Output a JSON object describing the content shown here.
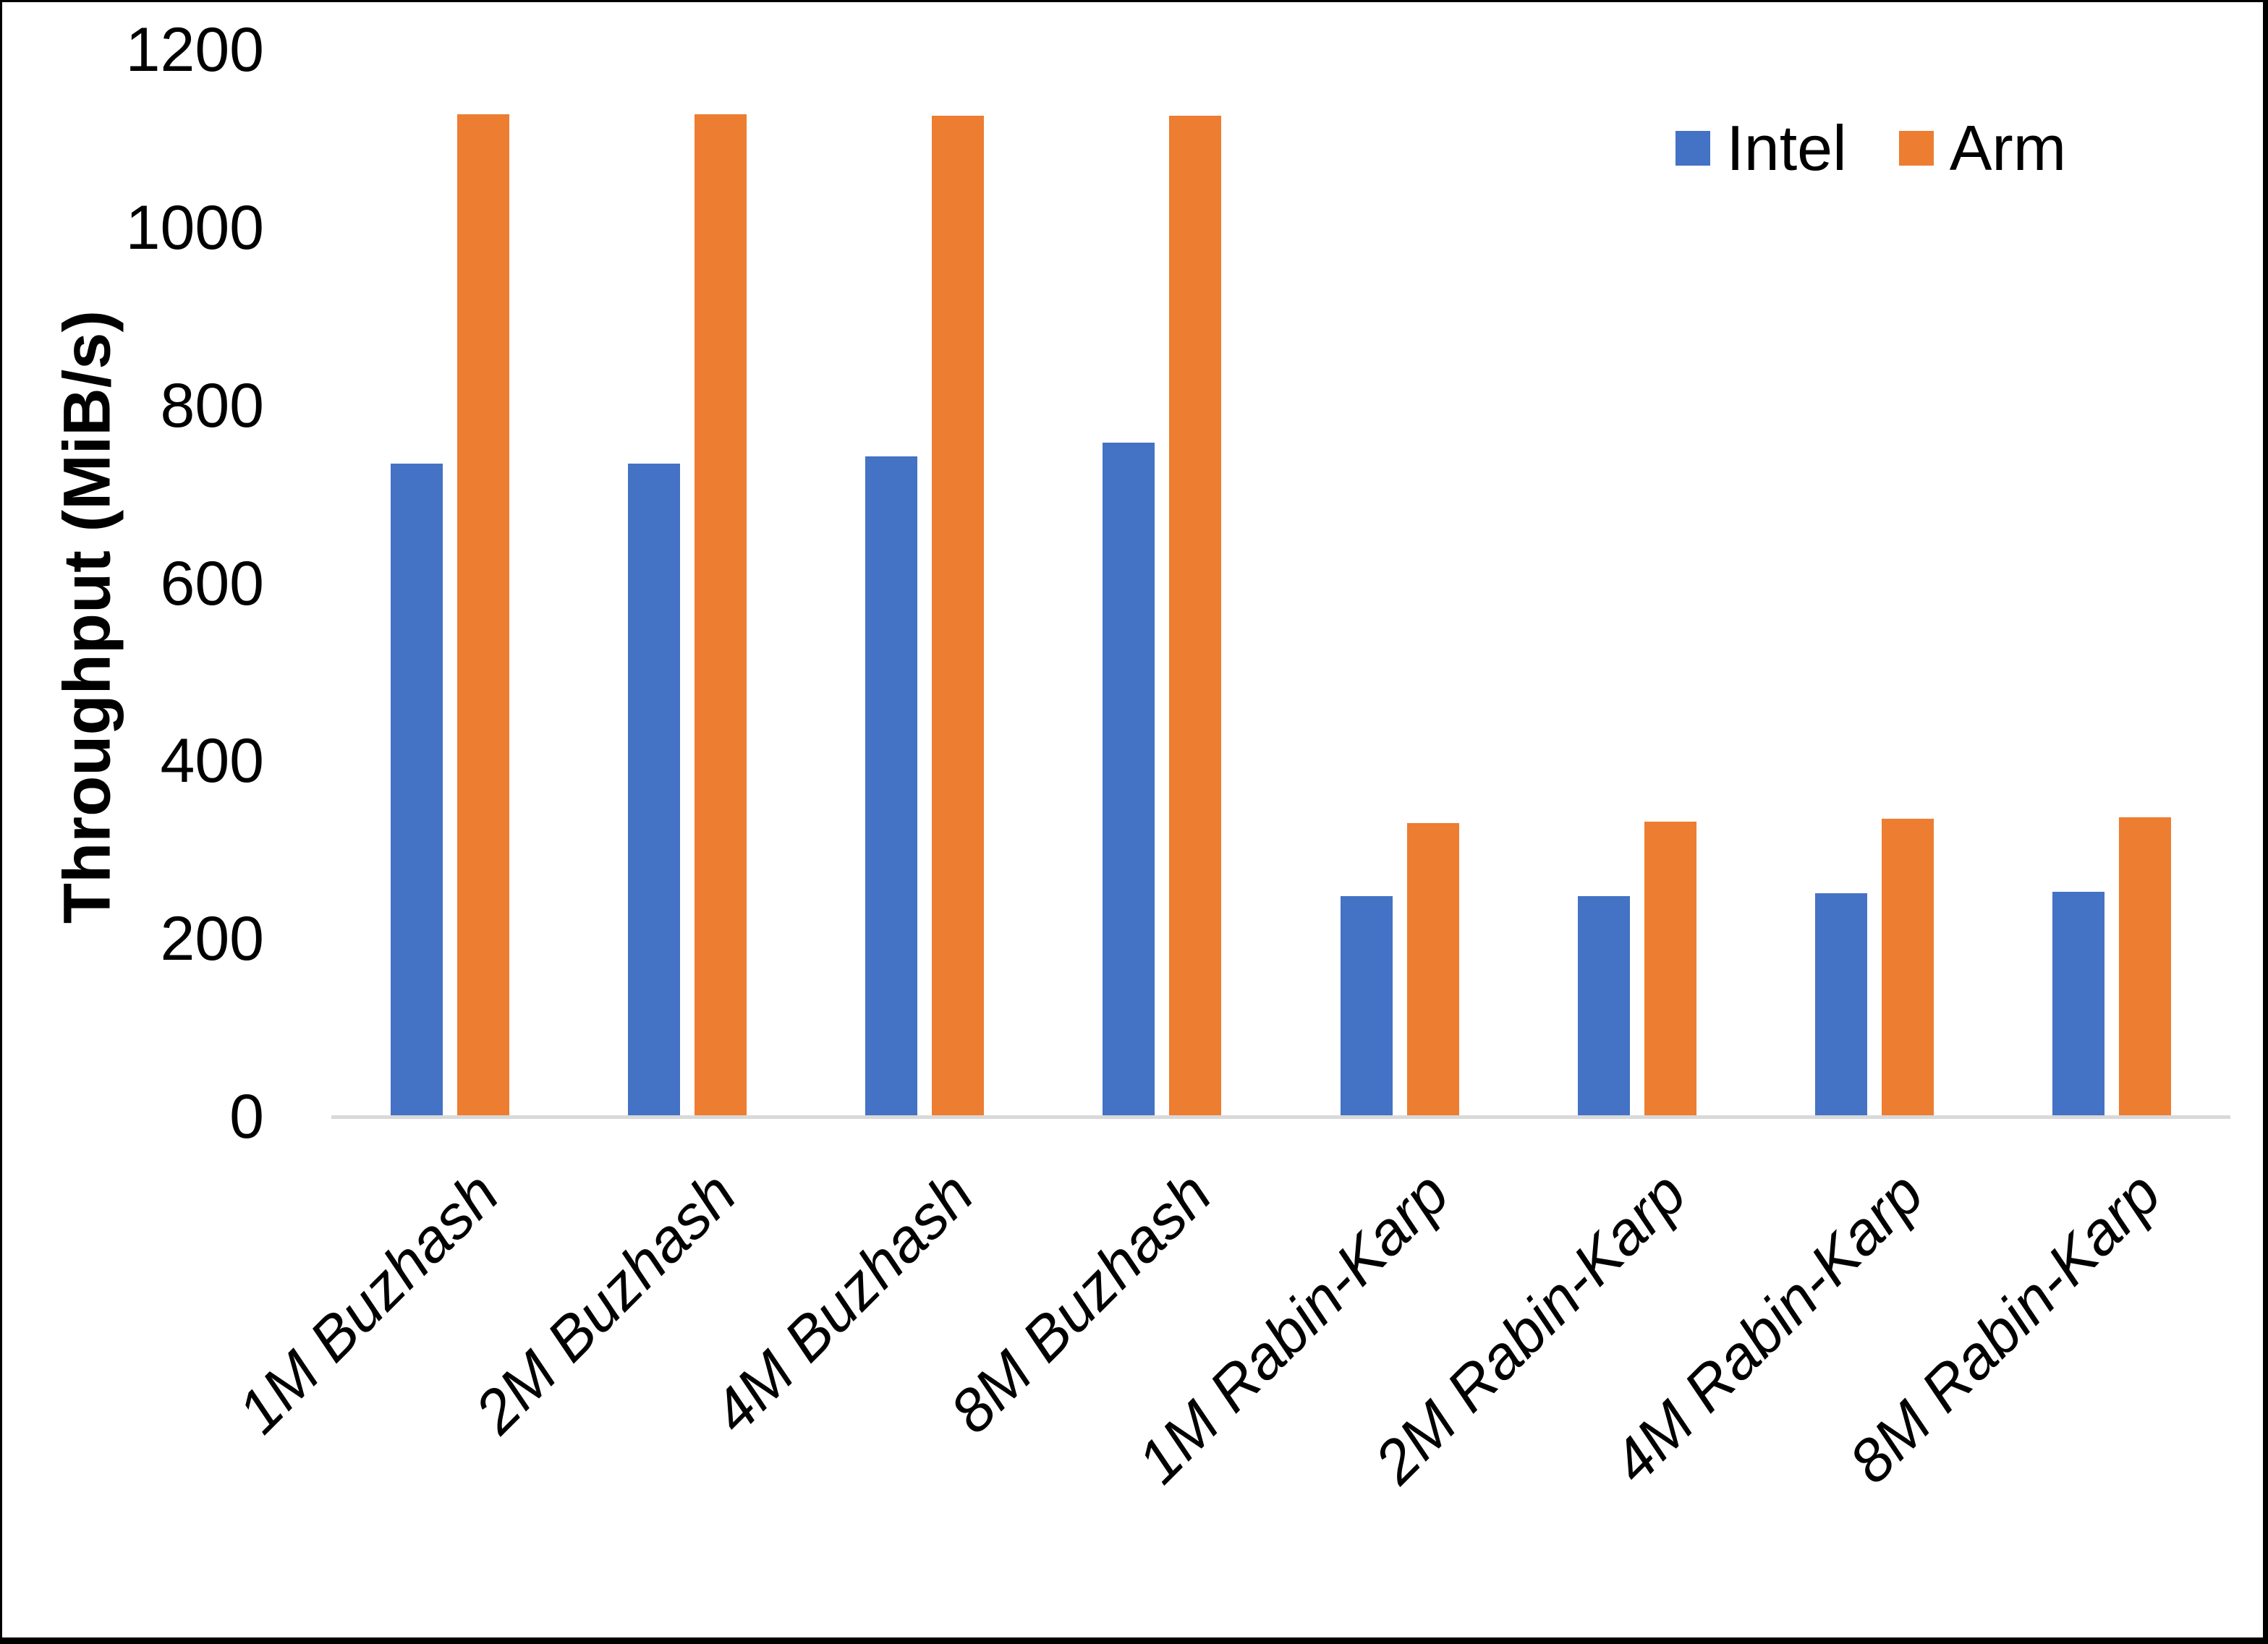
{
  "page": {
    "background": "#FFFFFF",
    "frame_color": "#000000"
  },
  "chart_data": {
    "type": "bar",
    "title": "",
    "xlabel": "",
    "ylabel": "Throughput (MiB/s)",
    "ylim": [
      0,
      1200
    ],
    "yticks": [
      0,
      200,
      400,
      600,
      800,
      1000,
      1200
    ],
    "grid": false,
    "legend_position": "top-right",
    "axis_line_color": "#D9D9D9",
    "text_color": "#000000",
    "categories": [
      "1M Buzhash",
      "2M Buzhash",
      "4M Buzhash",
      "8M Buzhash",
      "1M Rabin-Karp",
      "2M Rabin-Karp",
      "4M Rabin-Karp",
      "8M Rabin-Karp"
    ],
    "series": [
      {
        "name": "Intel",
        "color": "#4472C4",
        "values": [
          735,
          735,
          743,
          758,
          248,
          248,
          251,
          253
        ]
      },
      {
        "name": "Arm",
        "color": "#ED7D31",
        "values": [
          1128,
          1128,
          1126,
          1126,
          330,
          332,
          335,
          337
        ]
      }
    ]
  }
}
